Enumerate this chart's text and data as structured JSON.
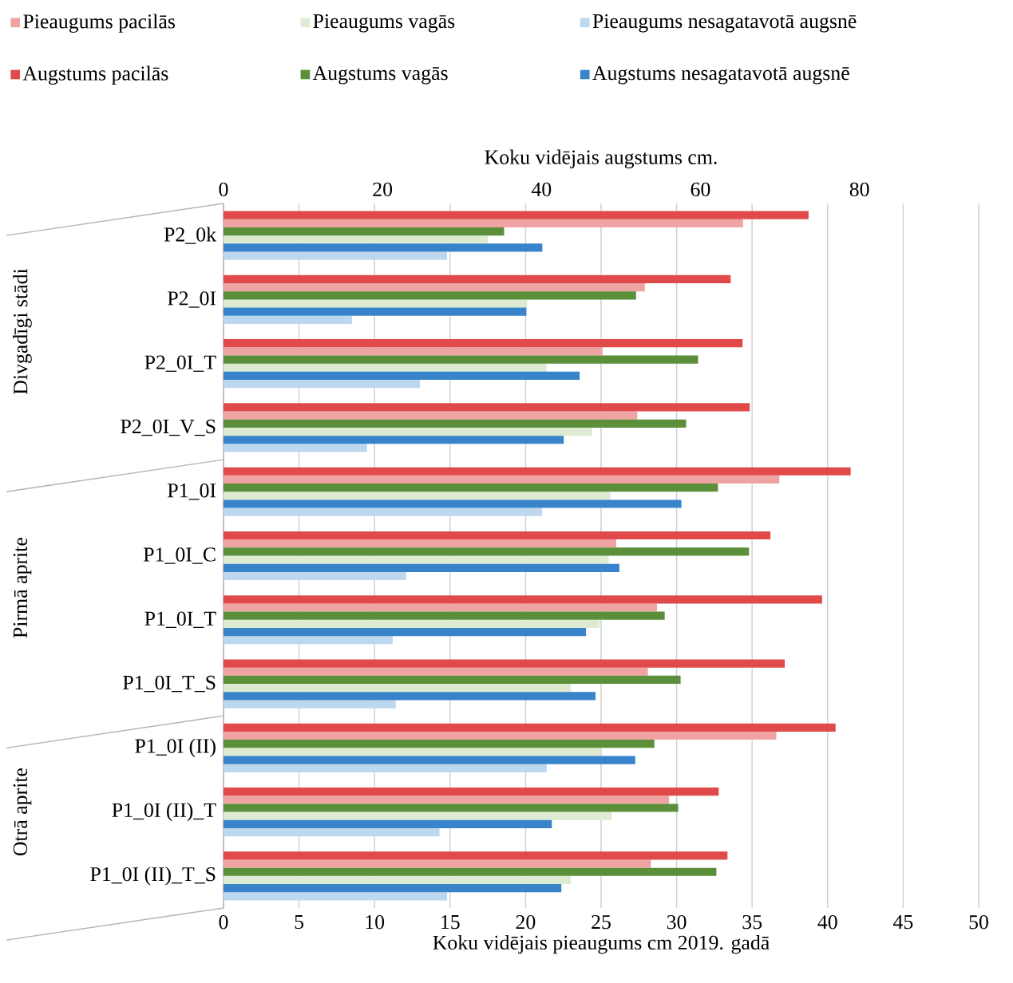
{
  "chart_data": {
    "type": "bar",
    "orientation": "horizontal",
    "xlabel": "Koku vidējais pieaugums cm 2019. gadā",
    "x2label": "Koku vidējais augstums cm.",
    "categories": [
      "P2_0k",
      "P2_0I",
      "P2_0I_T",
      "P2_0I_V_S",
      "P1_0I",
      "P1_0I_C",
      "P1_0I_T",
      "P1_0I_T_S",
      "P1_0I (II)",
      "P1_0I (II)_T",
      "P1_0I (II)_T_S"
    ],
    "series": [
      {
        "name": "Pieaugums pacilās",
        "color": "#f0a3a3",
        "values": [
          34.4,
          27.9,
          25.1,
          27.4,
          36.8,
          26.0,
          28.7,
          28.1,
          36.6,
          29.5,
          28.3
        ]
      },
      {
        "name": "Pieaugums vagās",
        "color": "#dcebd2",
        "values": [
          17.5,
          20.1,
          21.4,
          24.4,
          25.6,
          25.5,
          24.9,
          23.0,
          25.0,
          25.7,
          23.0
        ]
      },
      {
        "name": "Pieaugums nesagatavotā augsnē",
        "color": "#bdd7ee",
        "values": [
          14.8,
          8.5,
          13.0,
          9.5,
          21.1,
          12.1,
          11.2,
          11.4,
          21.4,
          14.3,
          14.8
        ]
      },
      {
        "name": "Augstums pacilās",
        "color": "#e04a4a",
        "axis": "x2",
        "values": [
          73.6,
          63.8,
          65.3,
          66.2,
          78.9,
          68.8,
          75.3,
          70.6,
          77.0,
          62.3,
          63.4
        ]
      },
      {
        "name": "Augstums vagās",
        "color": "#5b8f3a",
        "axis": "x2",
        "values": [
          35.3,
          51.9,
          59.7,
          58.2,
          62.2,
          66.1,
          55.5,
          57.5,
          54.2,
          57.2,
          62.0
        ]
      },
      {
        "name": "Augstums nesagatavotā augsnē",
        "color": "#3784cb",
        "axis": "x2",
        "values": [
          40.1,
          38.1,
          44.8,
          42.8,
          57.6,
          49.8,
          45.6,
          46.8,
          51.8,
          41.3,
          42.5
        ]
      }
    ],
    "xlim": [
      0,
      50
    ],
    "xticks": [
      0,
      5,
      10,
      15,
      20,
      25,
      30,
      35,
      40,
      45,
      50
    ],
    "x2lim": [
      0,
      95
    ],
    "x2ticks": [
      0,
      20,
      40,
      60,
      80
    ],
    "grid": "x",
    "legend": "top",
    "annotations": [
      "Divgadīgi stādi",
      "Pirmā aprite",
      "Otrā aprite"
    ]
  }
}
